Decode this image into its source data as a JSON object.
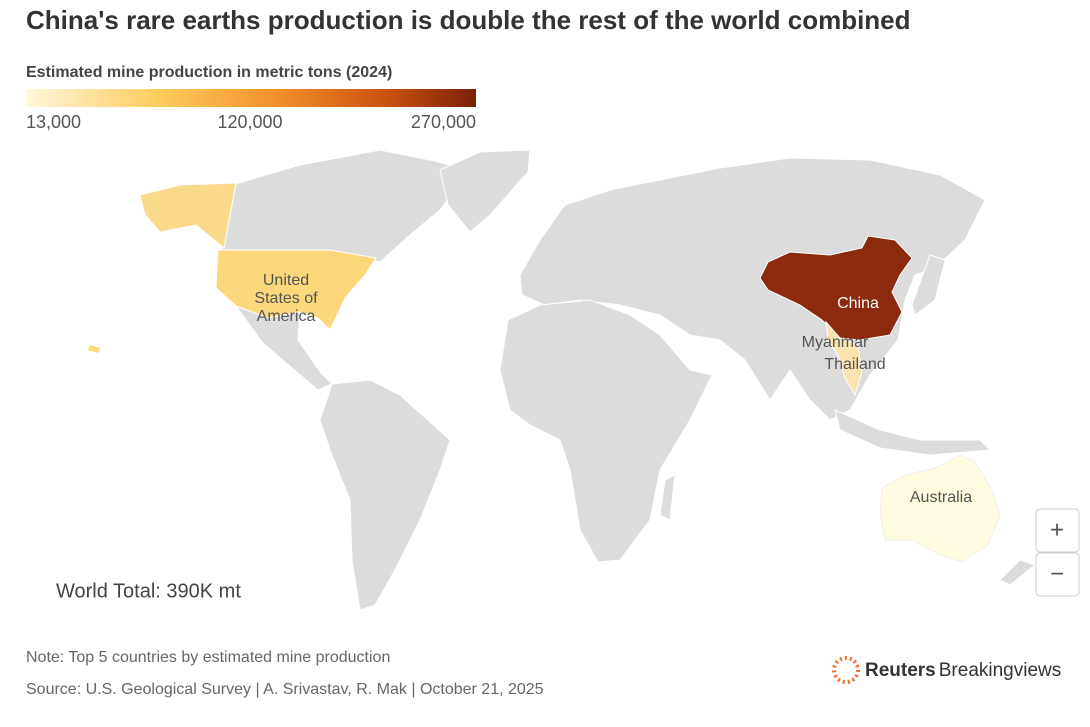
{
  "header": {
    "title": "China's rare earths production is double the rest of the world combined",
    "legend_title": "Estimated mine production in metric tons (2024)",
    "legend_labels": [
      "13,000",
      "120,000",
      "270,000"
    ]
  },
  "map": {
    "usa_label": [
      "United",
      "States of",
      "America"
    ],
    "china_label": "China",
    "myanmar_label": "Myanmar",
    "thailand_label": "Thailand",
    "australia_label": "Australia",
    "annotation": "World Total: 390K mt"
  },
  "controls": {
    "zoom_in": "+",
    "zoom_out": "−"
  },
  "footer": {
    "note": "Note: Top 5 countries by estimated mine production",
    "source": "Source: U.S. Geological Survey | A. Srivastav, R. Mak | October 21, 2025",
    "brand_bold": "Reuters",
    "brand": "Breakingviews"
  }
}
